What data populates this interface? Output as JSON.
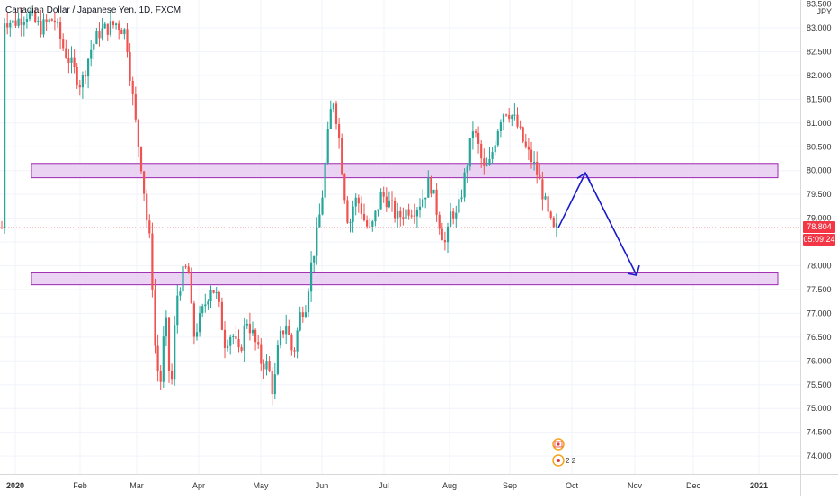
{
  "header": {
    "symbol_title": "Canadian Dollar / Japanese Yen, 1D, FXCM",
    "currency": "JPY"
  },
  "price_axis": {
    "ticks": [
      "74.000",
      "74.500",
      "75.000",
      "75.500",
      "76.000",
      "76.500",
      "77.000",
      "77.500",
      "78.000",
      "78.500",
      "79.000",
      "79.500",
      "80.000",
      "80.500",
      "81.000",
      "81.500",
      "82.000",
      "82.500",
      "83.000",
      "83.500"
    ]
  },
  "time_axis": {
    "labels": [
      "2020",
      "Feb",
      "Mar",
      "Apr",
      "May",
      "Jun",
      "Jul",
      "Aug",
      "Sep",
      "Oct",
      "Nov",
      "Dec",
      "2021"
    ]
  },
  "last_price": {
    "value": "78.804",
    "countdown": "05:09:24",
    "color": "#f23645"
  },
  "annotations": {
    "upper_zone": {
      "from": 79.85,
      "to": 80.15
    },
    "lower_zone": {
      "from": 77.6,
      "to": 77.85
    },
    "forecast_path": [
      {
        "date": "Sep 21",
        "price": 78.8
      },
      {
        "date": "Oct 05",
        "price": 79.95
      },
      {
        "date": "Oct 31",
        "price": 77.8
      }
    ],
    "zone_fill": "#e6c8f0",
    "zone_border": "#9c27b0",
    "arrow_color": "#1a1acc"
  },
  "markers": {
    "events_badge": "2 2",
    "flag_icon": "canada-flag-icon"
  },
  "colors": {
    "up": "#26a69a",
    "down": "#ef5350",
    "grid": "#f0f3fa"
  }
}
